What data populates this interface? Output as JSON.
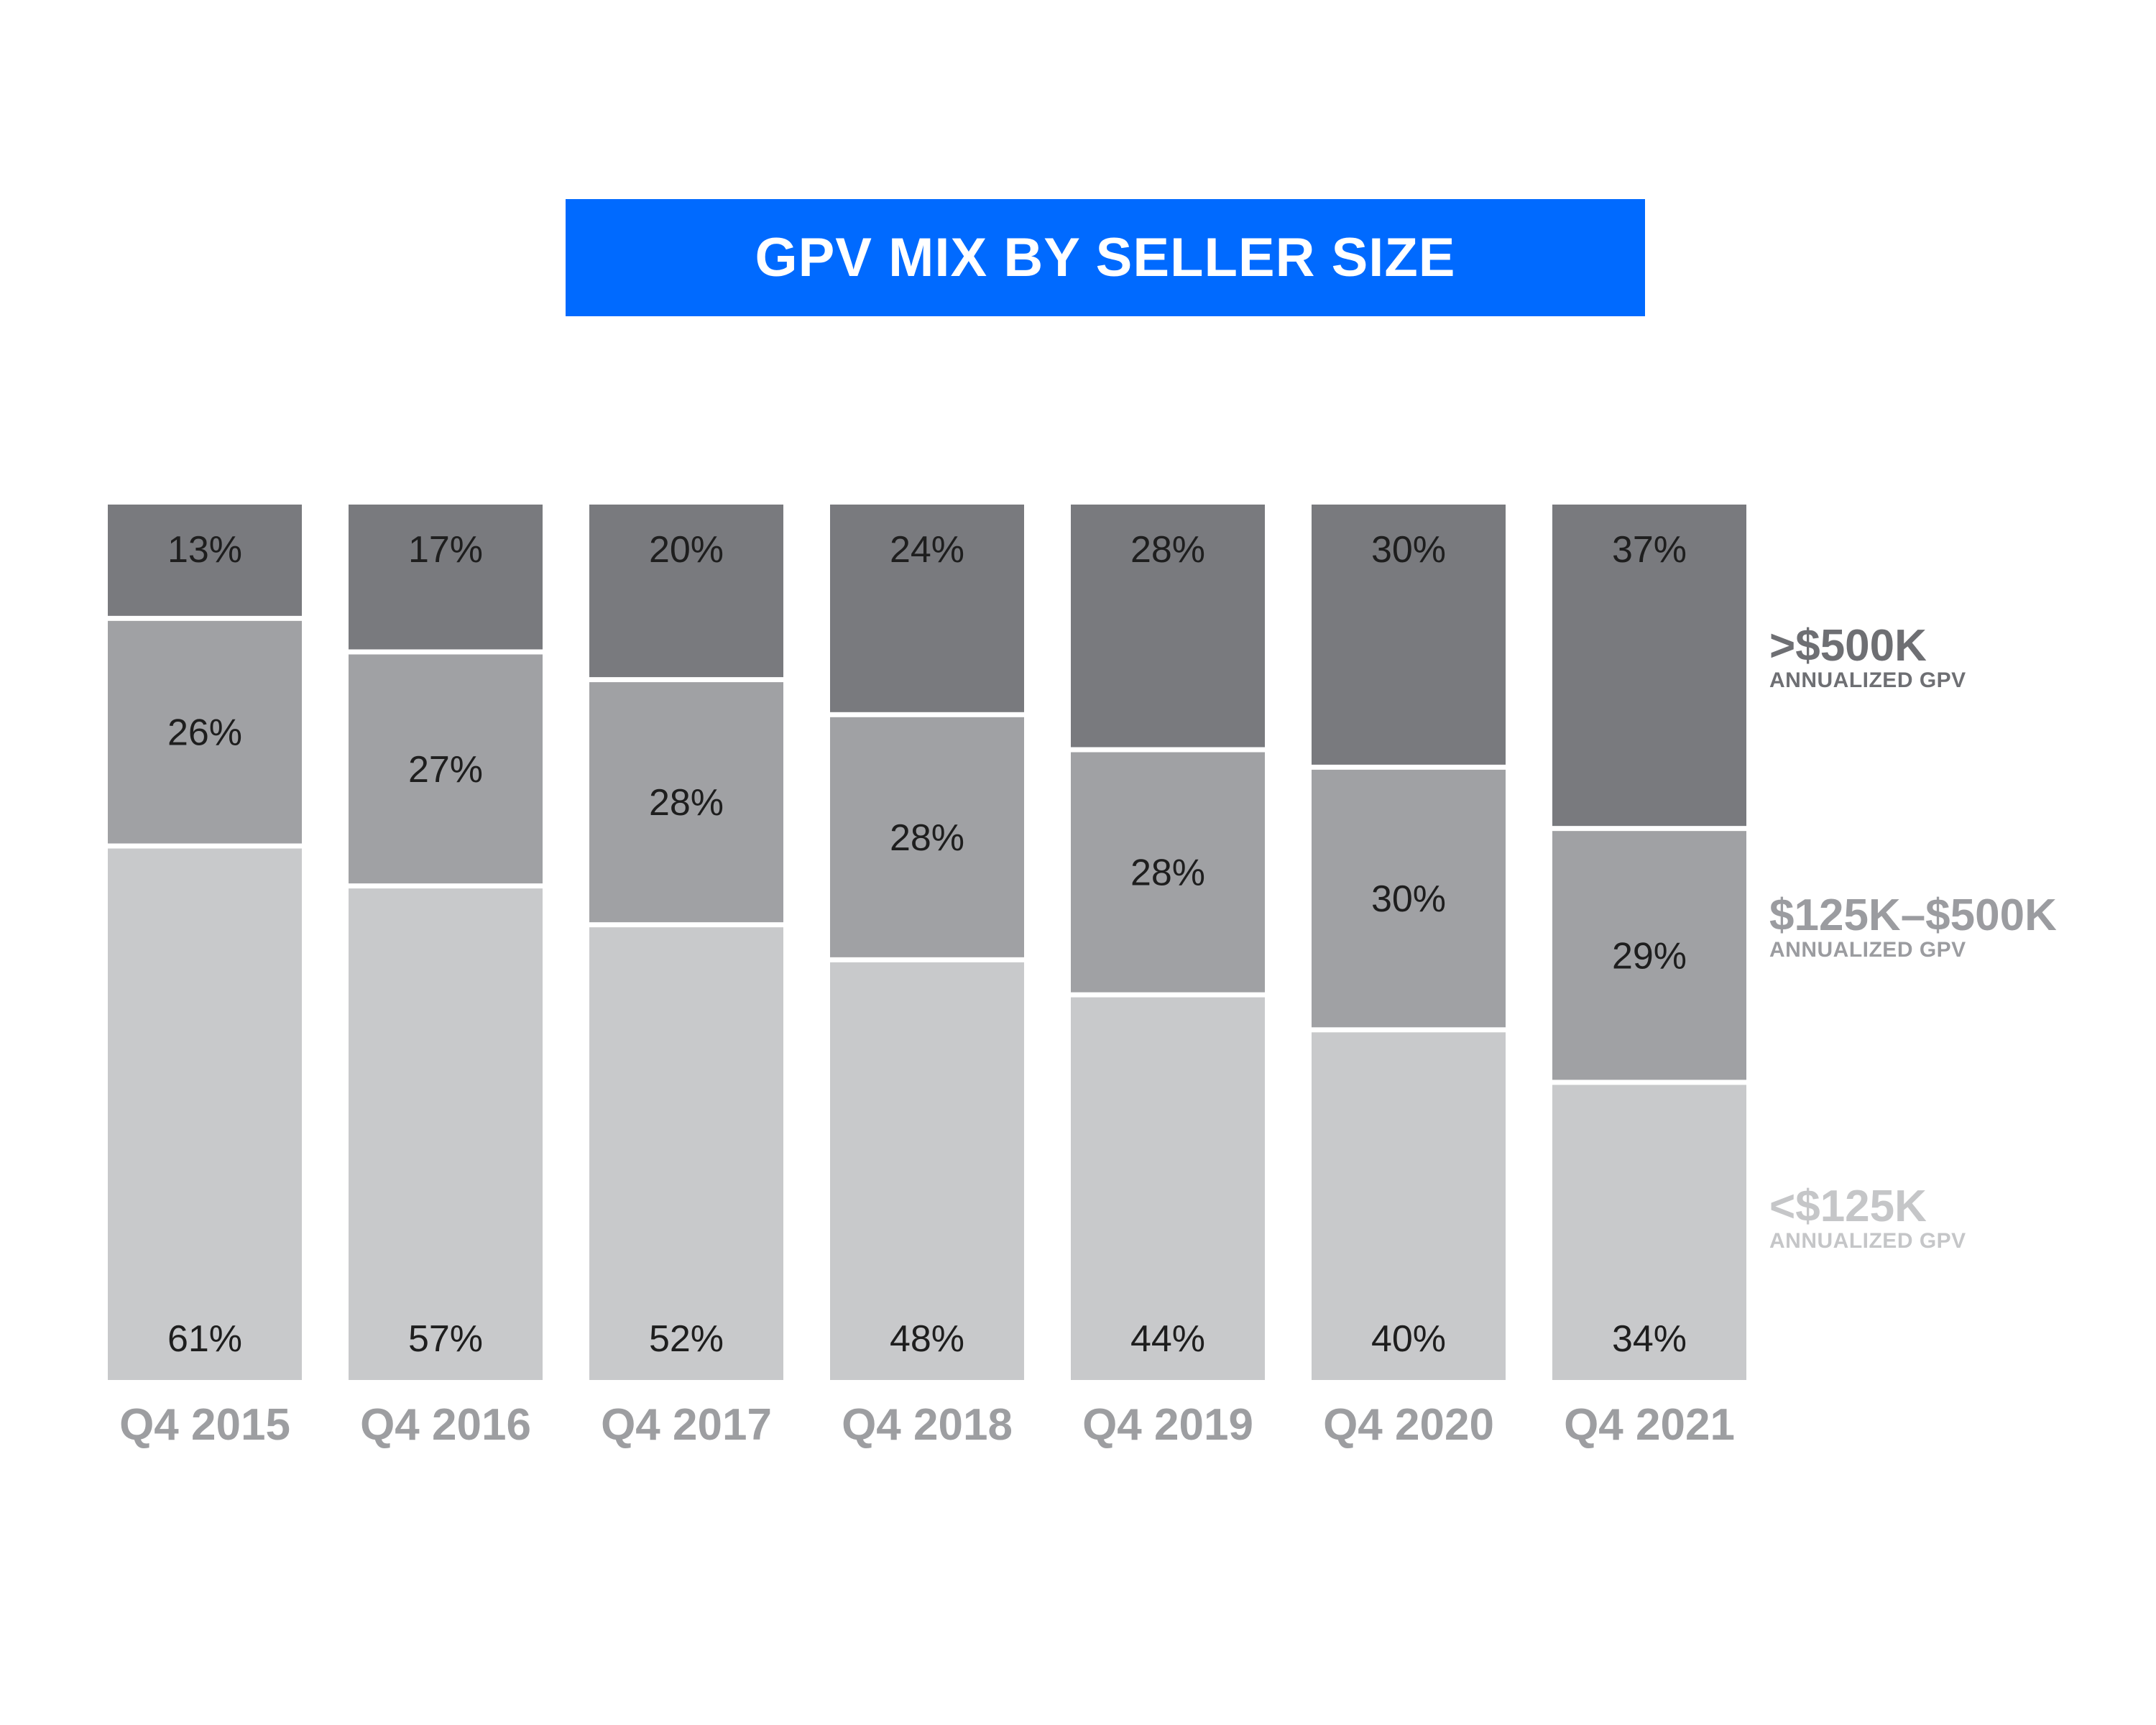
{
  "colors": {
    "title_bg": "#006aff",
    "top_segment": "#797a7e",
    "mid_segment": "#a0a1a4",
    "bottom_segment": "#c8c9cb",
    "label_text": "#1e1e1e",
    "category_text": "#9d9ea1",
    "legend_top": "#6e6f73",
    "legend_mid": "#9b9ca0",
    "legend_bottom": "#c5c6c8"
  },
  "chart_data": {
    "type": "bar",
    "stacked": true,
    "title": "GPV MIX BY SELLER SIZE",
    "categories": [
      "Q4 2015",
      "Q4 2016",
      "Q4 2017",
      "Q4 2018",
      "Q4 2019",
      "Q4 2020",
      "Q4 2021"
    ],
    "series": [
      {
        "name": "<$125K",
        "sublabel": "ANNUALIZED GPV",
        "values": [
          61,
          57,
          52,
          48,
          44,
          40,
          34
        ],
        "labels": [
          "61%",
          "57%",
          "52%",
          "48%",
          "44%",
          "40%",
          "34%"
        ]
      },
      {
        "name": "$125K–$500K",
        "sublabel": "ANNUALIZED GPV",
        "values": [
          26,
          27,
          28,
          28,
          28,
          30,
          29
        ],
        "labels": [
          "26%",
          "27%",
          "28%",
          "28%",
          "28%",
          "30%",
          "29%"
        ]
      },
      {
        "name": ">$500K",
        "sublabel": "ANNUALIZED GPV",
        "values": [
          13,
          17,
          20,
          24,
          28,
          30,
          37
        ],
        "labels": [
          "13%",
          "17%",
          "20%",
          "24%",
          "28%",
          "30%",
          "37%"
        ]
      }
    ],
    "ylim": [
      0,
      100
    ],
    "legend_position": "right",
    "grid": false
  },
  "legend": {
    "top": {
      "title": ">$500K",
      "sub": "ANNUALIZED GPV"
    },
    "mid": {
      "title": "$125K–$500K",
      "sub": "ANNUALIZED GPV"
    },
    "bottom": {
      "title": "<$125K",
      "sub": "ANNUALIZED GPV"
    }
  }
}
